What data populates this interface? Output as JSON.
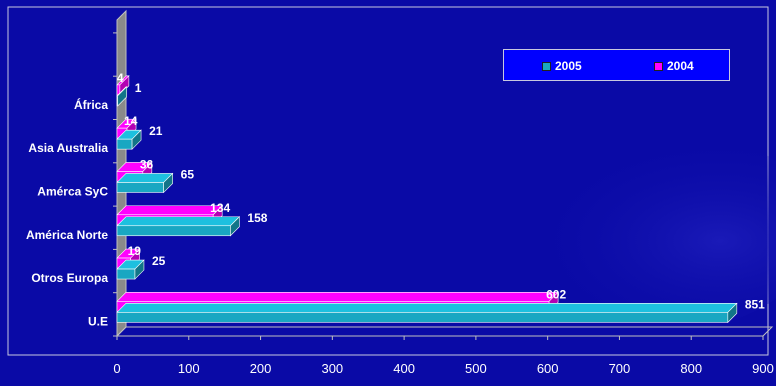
{
  "chart_data": {
    "type": "bar",
    "orientation": "horizontal",
    "categories": [
      "U.E",
      "Otros Europa",
      "América Norte",
      "Amérca SyC",
      "Asia Australia",
      "África"
    ],
    "series": [
      {
        "name": "2005",
        "values": [
          851,
          25,
          158,
          65,
          21,
          1
        ],
        "color": "#19a7c2"
      },
      {
        "name": "2004",
        "values": [
          602,
          19,
          134,
          36,
          14,
          4
        ],
        "color": "#ff00ff"
      }
    ],
    "data_labels": {
      "2005": [
        "851",
        "25",
        "158",
        "65",
        "21",
        "1"
      ],
      "2004": [
        "602",
        "19",
        "134",
        "36",
        "14",
        "4"
      ]
    },
    "xlim": [
      0,
      900
    ],
    "x_ticks": [
      "0",
      "100",
      "200",
      "300",
      "400",
      "500",
      "600",
      "700",
      "800",
      "900"
    ],
    "title": "",
    "xlabel": "",
    "ylabel": "",
    "legend_position": "top-right",
    "grid": false,
    "colors": {
      "background": "#0a0aa6",
      "label": "#ffffff",
      "axis_wall": "#8a8a8a"
    }
  }
}
